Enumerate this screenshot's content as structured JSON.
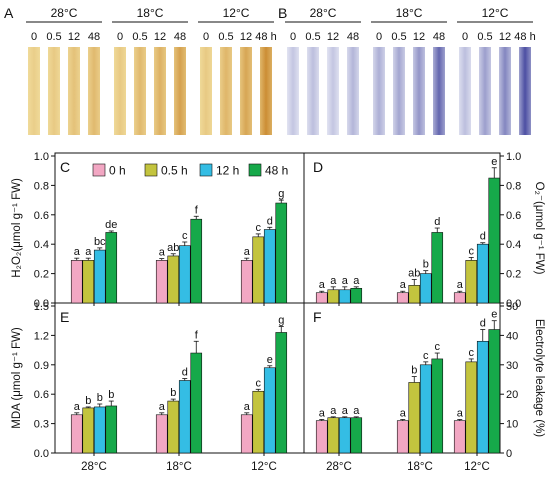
{
  "panels": {
    "A": "A",
    "B": "B",
    "C": "C",
    "D": "D",
    "E": "E",
    "F": "F"
  },
  "photo_panels": {
    "temperatures": [
      "28°C",
      "18°C",
      "12°C"
    ],
    "times_A": [
      "0",
      "0.5",
      "12",
      "48",
      "0",
      "0.5",
      "12",
      "48",
      "0",
      "0.5",
      "12",
      "48 h"
    ],
    "times_B": [
      "0",
      "0.5",
      "12",
      "48",
      "0",
      "0.5",
      "12",
      "48",
      "0",
      "0.5",
      "12",
      "48 h"
    ],
    "stain_A": "#c8852a",
    "stain_B": "#3c3f9a",
    "staining_level_A": [
      0.1,
      0.15,
      0.25,
      0.35,
      0.15,
      0.35,
      0.45,
      0.65,
      0.15,
      0.4,
      0.6,
      0.9
    ],
    "staining_level_B": [
      0.15,
      0.2,
      0.15,
      0.25,
      0.3,
      0.35,
      0.45,
      0.75,
      0.2,
      0.4,
      0.55,
      0.9
    ]
  },
  "legend": {
    "items": [
      "0 h",
      "0.5 h",
      "12 h",
      "48 h"
    ],
    "colors": [
      "#f2a7c3",
      "#c3c43e",
      "#34bde4",
      "#16a94a"
    ]
  },
  "chart_data": [
    {
      "panel": "C",
      "type": "bar",
      "ylabel": "H₂O₂(μmol g⁻¹ FW)",
      "axis_side": "left",
      "ylim": [
        0,
        1.0
      ],
      "yticks": [
        "0.0",
        "0.2",
        "0.4",
        "0.6",
        "0.8",
        "1.0"
      ],
      "categories": [
        "28°C",
        "18°C",
        "12°C"
      ],
      "series": [
        {
          "name": "0 h",
          "values": [
            0.29,
            0.29,
            0.29
          ],
          "errors": [
            0.015,
            0.012,
            0.015
          ],
          "letters": [
            "a",
            "a",
            "a"
          ]
        },
        {
          "name": "0.5 h",
          "values": [
            0.29,
            0.32,
            0.45
          ],
          "errors": [
            0.015,
            0.015,
            0.02
          ],
          "letters": [
            "a",
            "ab",
            "c"
          ]
        },
        {
          "name": "12 h",
          "values": [
            0.36,
            0.39,
            0.5
          ],
          "errors": [
            0.015,
            0.025,
            0.015
          ],
          "letters": [
            "bc",
            "c",
            "d"
          ]
        },
        {
          "name": "48 h",
          "values": [
            0.48,
            0.57,
            0.68
          ],
          "errors": [
            0.01,
            0.02,
            0.02
          ],
          "letters": [
            "de",
            "f",
            "g"
          ]
        }
      ]
    },
    {
      "panel": "D",
      "type": "bar",
      "ylabel": "O₂⁻(μmol g⁻¹ FW)",
      "axis_side": "right",
      "ylim": [
        0,
        1.0
      ],
      "yticks": [
        "0.0",
        "0.2",
        "0.4",
        "0.6",
        "0.8",
        "1.0"
      ],
      "categories": [
        "28°C",
        "18°C",
        "12°C"
      ],
      "series": [
        {
          "name": "0 h",
          "values": [
            0.07,
            0.07,
            0.07
          ],
          "errors": [
            0.01,
            0.01,
            0.01
          ],
          "letters": [
            "a",
            "a",
            "a"
          ]
        },
        {
          "name": "0.5 h",
          "values": [
            0.09,
            0.12,
            0.29
          ],
          "errors": [
            0.02,
            0.04,
            0.02
          ],
          "letters": [
            "a",
            "ab",
            "c"
          ]
        },
        {
          "name": "12 h",
          "values": [
            0.09,
            0.2,
            0.4
          ],
          "errors": [
            0.02,
            0.02,
            0.01
          ],
          "letters": [
            "a",
            "b",
            "d"
          ]
        },
        {
          "name": "48 h",
          "values": [
            0.1,
            0.48,
            0.85
          ],
          "errors": [
            0.01,
            0.03,
            0.07
          ],
          "letters": [
            "a",
            "d",
            "e"
          ]
        }
      ]
    },
    {
      "panel": "E",
      "type": "bar",
      "ylabel": "MDA (μmol g⁻¹ FW)",
      "axis_side": "left",
      "ylim": [
        0,
        1.5
      ],
      "yticks": [
        "0.0",
        "0.3",
        "0.6",
        "0.9",
        "1.2",
        "1.5"
      ],
      "categories": [
        "28°C",
        "18°C",
        "12°C"
      ],
      "series": [
        {
          "name": "0 h",
          "values": [
            0.39,
            0.39,
            0.39
          ],
          "errors": [
            0.02,
            0.02,
            0.02
          ],
          "letters": [
            "a",
            "a",
            "a"
          ]
        },
        {
          "name": "0.5 h",
          "values": [
            0.46,
            0.53,
            0.63
          ],
          "errors": [
            0.01,
            0.02,
            0.02
          ],
          "letters": [
            "b",
            "b",
            "c"
          ]
        },
        {
          "name": "12 h",
          "values": [
            0.47,
            0.74,
            0.87
          ],
          "errors": [
            0.03,
            0.02,
            0.02
          ],
          "letters": [
            "b",
            "d",
            "e"
          ]
        },
        {
          "name": "48 h",
          "values": [
            0.48,
            1.02,
            1.23
          ],
          "errors": [
            0.05,
            0.12,
            0.06
          ],
          "letters": [
            "b",
            "f",
            "g"
          ]
        }
      ]
    },
    {
      "panel": "F",
      "type": "bar",
      "ylabel": "Electrolyte leakage (%)",
      "axis_side": "right",
      "ylim": [
        0,
        50
      ],
      "yticks": [
        "0",
        "10",
        "20",
        "30",
        "40",
        "50"
      ],
      "categories": [
        "28°C",
        "18°C",
        "12°C"
      ],
      "series": [
        {
          "name": "0 h",
          "values": [
            11,
            11,
            11
          ],
          "errors": [
            0.4,
            0.4,
            0.4
          ],
          "letters": [
            "a",
            "a",
            "a"
          ]
        },
        {
          "name": "0.5 h",
          "values": [
            12,
            24,
            31
          ],
          "errors": [
            0.3,
            2.0,
            1.0
          ],
          "letters": [
            "a",
            "b",
            "c"
          ]
        },
        {
          "name": "12 h",
          "values": [
            12,
            30,
            38
          ],
          "errors": [
            0.3,
            1.0,
            4.0
          ],
          "letters": [
            "a",
            "c",
            "d"
          ]
        },
        {
          "name": "48 h",
          "values": [
            12,
            32,
            42
          ],
          "errors": [
            0.3,
            2.0,
            3.0
          ],
          "letters": [
            "a",
            "c",
            "e"
          ]
        }
      ]
    }
  ]
}
